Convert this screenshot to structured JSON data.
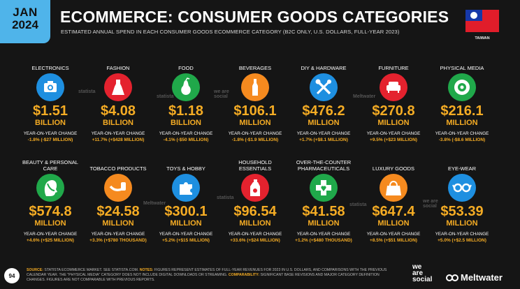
{
  "header": {
    "month": "JAN",
    "year": "2024",
    "title": "ECOMMERCE: CONSUMER GOODS CATEGORIES",
    "subtitle": "ESTIMATED ANNUAL SPEND IN EACH CONSUMER GOODS ECOMMERCE CATEGORY (B2C ONLY, U.S. DOLLARS, FULL-YEAR 2023)",
    "country": "TAIWAN"
  },
  "yoy_label": "YEAR-ON-YEAR CHANGE",
  "categories": [
    {
      "label": "ELECTRONICS",
      "value": "$1.51",
      "unit": "BILLION",
      "yoy": "-1.8% (-$27 MILLION)",
      "icon": "camera-icon",
      "color": "#1e8fe0"
    },
    {
      "label": "FASHION",
      "value": "$4.08",
      "unit": "BILLION",
      "yoy": "+11.7% (+$428 MILLION)",
      "icon": "dress-icon",
      "color": "#e4222e"
    },
    {
      "label": "FOOD",
      "value": "$1.18",
      "unit": "BILLION",
      "yoy": "-4.1% (-$50 MILLION)",
      "icon": "pear-icon",
      "color": "#20a84a"
    },
    {
      "label": "BEVERAGES",
      "value": "$106.1",
      "unit": "MILLION",
      "yoy": "-1.8% (-$1.9 MILLION)",
      "icon": "bottle-icon",
      "color": "#f58a1f"
    },
    {
      "label": "DIY & HARDWARE",
      "value": "$476.2",
      "unit": "MILLION",
      "yoy": "+1.7% (+$8.1 MILLION)",
      "icon": "tools-icon",
      "color": "#1e8fe0"
    },
    {
      "label": "FURNITURE",
      "value": "$270.8",
      "unit": "MILLION",
      "yoy": "+9.5% (+$23 MILLION)",
      "icon": "sofa-icon",
      "color": "#e4222e"
    },
    {
      "label": "PHYSICAL MEDIA",
      "value": "$216.1",
      "unit": "MILLION",
      "yoy": "-3.8% (-$8.6 MILLION)",
      "icon": "disc-icon",
      "color": "#20a84a"
    },
    {
      "label": "BEAUTY & PERSONAL CARE",
      "value": "$574.8",
      "unit": "MILLION",
      "yoy": "+4.6% (+$25 MILLION)",
      "icon": "face-icon",
      "color": "#20a84a"
    },
    {
      "label": "TOBACCO PRODUCTS",
      "value": "$24.58",
      "unit": "MILLION",
      "yoy": "+3.3% (+$780 THOUSAND)",
      "icon": "pipe-icon",
      "color": "#f58a1f"
    },
    {
      "label": "TOYS & HOBBY",
      "value": "$300.1",
      "unit": "MILLION",
      "yoy": "+5.2% (+$15 MILLION)",
      "icon": "puzzle-icon",
      "color": "#1e8fe0"
    },
    {
      "label": "HOUSEHOLD ESSENTIALS",
      "value": "$96.54",
      "unit": "MILLION",
      "yoy": "+33.6% (+$24 MILLION)",
      "icon": "cleaner-bottle-icon",
      "color": "#e4222e"
    },
    {
      "label": "OVER-THE-COUNTER PHARMACEUTICALS",
      "value": "$41.58",
      "unit": "MILLION",
      "yoy": "+1.2% (+$480 THOUSAND)",
      "icon": "medical-cross-icon",
      "color": "#20a84a"
    },
    {
      "label": "LUXURY GOODS",
      "value": "$647.4",
      "unit": "MILLION",
      "yoy": "+8.5% (+$51 MILLION)",
      "icon": "handbag-icon",
      "color": "#f58a1f"
    },
    {
      "label": "EYE-WEAR",
      "value": "$53.39",
      "unit": "MILLION",
      "yoy": "+5.0% (+$2.5 MILLION)",
      "icon": "glasses-icon",
      "color": "#1e8fe0"
    }
  ],
  "footer": {
    "page_number": "94",
    "source_label": "SOURCE:",
    "source_text": "STATISTA ECOMMERCE MARKET. SEE STATISTA.COM.",
    "notes_label": "NOTES:",
    "notes_text": "FIGURES REPRESENT ESTIMATES OF FULL-YEAR REVENUES FOR 2023 IN U.S. DOLLARS, AND COMPARISONS WITH THE PREVIOUS CALENDAR YEAR. THE \"PHYSICAL MEDIA\" CATEGORY DOES NOT INCLUDE DIGITAL DOWNLOADS OR STREAMING.",
    "comparability_label": "COMPARABILITY:",
    "comparability_text": "SIGNIFICANT BASE REVISIONS AND MAJOR CATEGORY DEFINITION CHANGES. FIGURES ARE NOT COMPARABLE WITH PREVIOUS REPORTS.",
    "brand_1_line1": "we",
    "brand_1_line2": "are",
    "brand_1_line3": "social",
    "brand_2": "Meltwater"
  },
  "watermarks": [
    "statista",
    "we are social",
    "Meltwater",
    "statista",
    "we are social",
    "Meltwater",
    "statista",
    "statista"
  ]
}
